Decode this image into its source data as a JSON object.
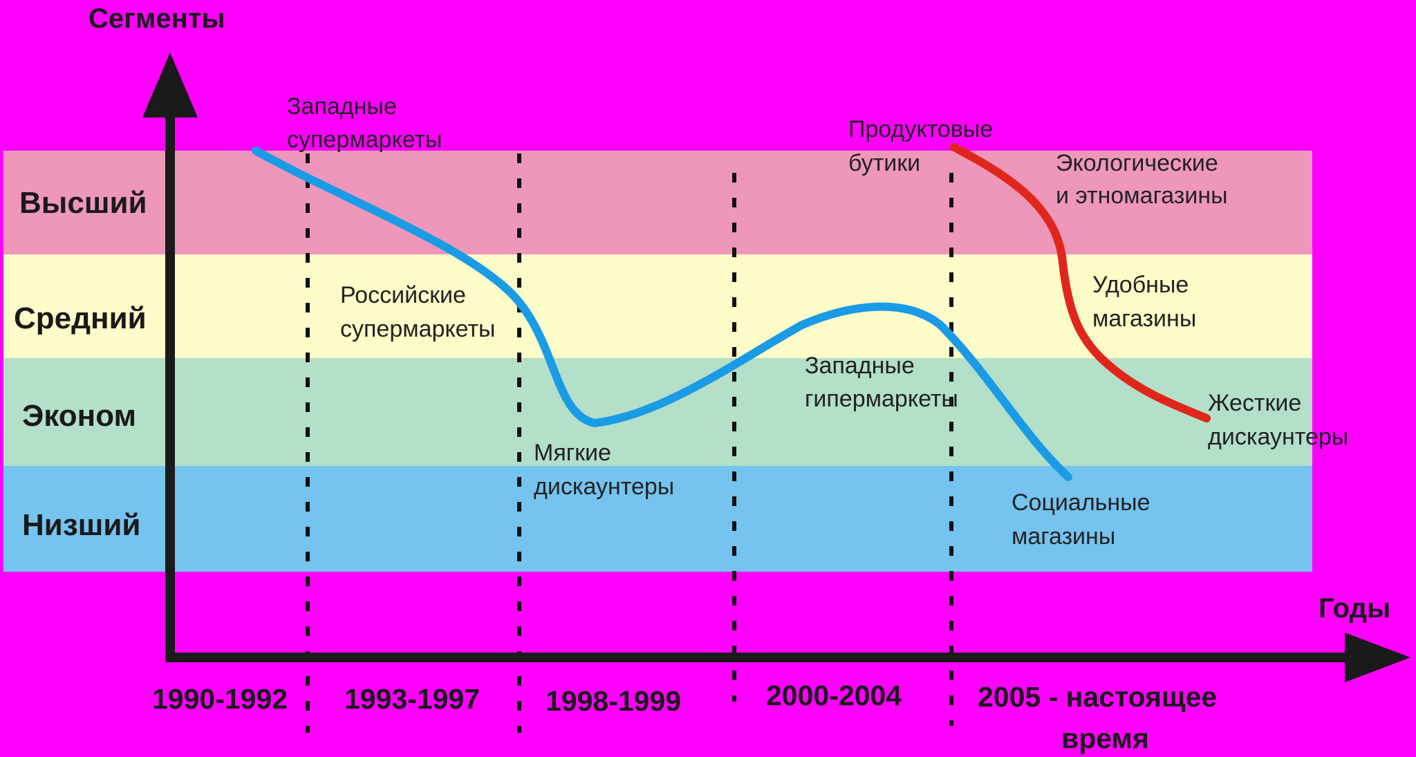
{
  "colors": {
    "background": "#ff00ff",
    "segment_highest": "#ee97bb",
    "segment_middle": "#fdfbc8",
    "segment_economy": "#b4dfc8",
    "segment_lowest": "#75c3ef",
    "curve_blue": "#1a9be6",
    "curve_red": "#e0261c",
    "axis": "#1a1a1a"
  },
  "axis": {
    "y_title": "Сегменты",
    "x_title": "Годы"
  },
  "segments": [
    {
      "label": "Высший"
    },
    {
      "label": "Средний"
    },
    {
      "label": "Эконом"
    },
    {
      "label": "Низший"
    }
  ],
  "periods": [
    {
      "line1": "1990-1992",
      "line2": ""
    },
    {
      "line1": "1993-1997",
      "line2": ""
    },
    {
      "line1": "1998-1999",
      "line2": ""
    },
    {
      "line1": "2000-2004",
      "line2": ""
    },
    {
      "line1": "2005 - настоящее",
      "line2": "время"
    }
  ],
  "annotations": [
    {
      "line1": "Западные",
      "line2": "супермаркеты"
    },
    {
      "line1": "Российские",
      "line2": "супермаркеты"
    },
    {
      "line1": "Мягкие",
      "line2": "дискаунтеры"
    },
    {
      "line1": "Западные",
      "line2": "гипермаркеты"
    },
    {
      "line1": "Социальные",
      "line2": "магазины"
    },
    {
      "line1": "Продуктовые",
      "line2": "бутики"
    },
    {
      "line1": "Экологические",
      "line2": "и этномагазины"
    },
    {
      "line1": "Удобные",
      "line2": "магазины"
    },
    {
      "line1": "Жесткие",
      "line2": "дискаунтеры"
    }
  ]
}
